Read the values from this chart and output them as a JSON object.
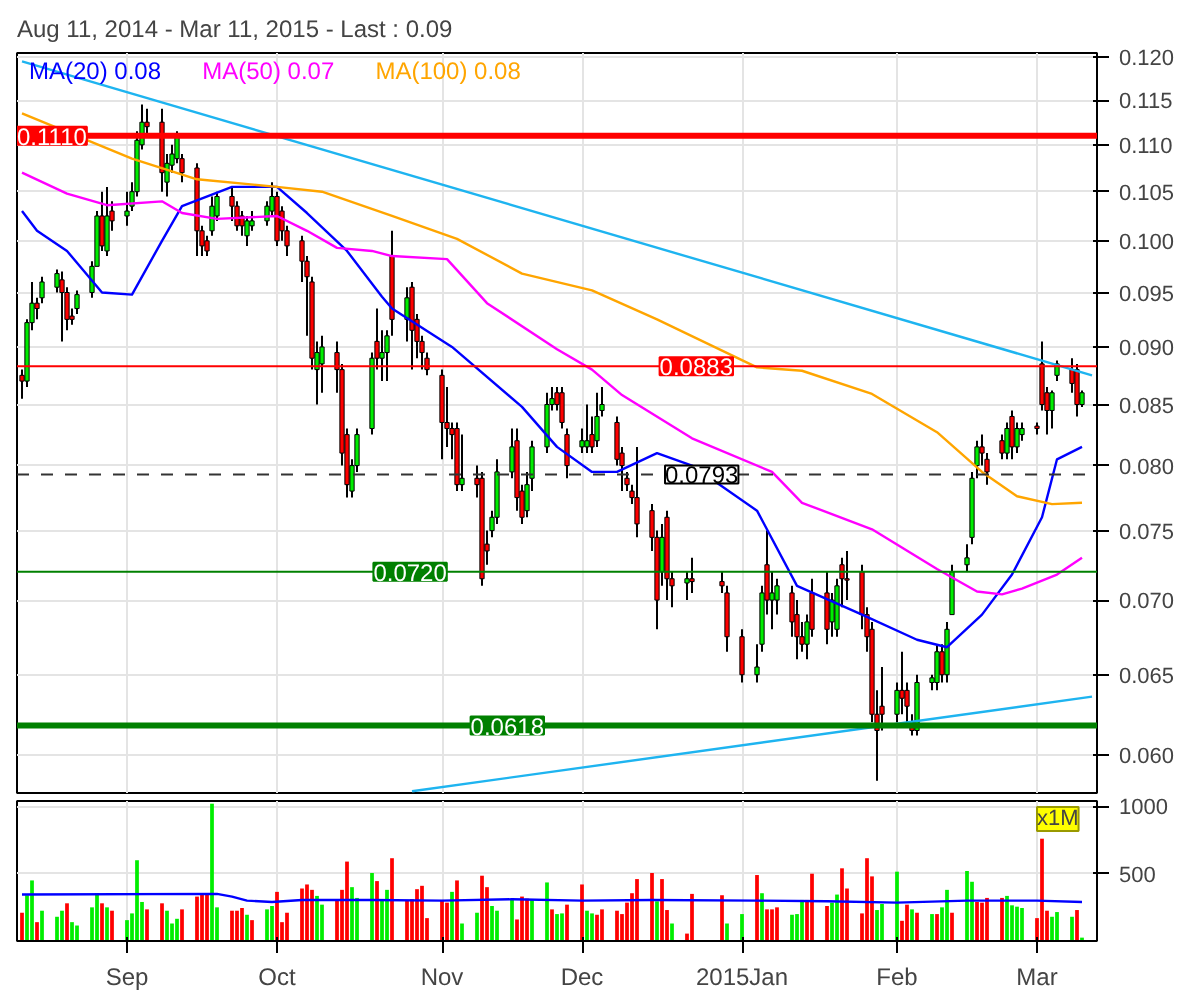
{
  "chart_data": [
    {
      "type": "candlestick",
      "title": "Aug 11, 2014 - Mar 11, 2015 - Last : 0.09",
      "log": true,
      "grid": true,
      "legend": "top left",
      "tick_labels": "y",
      "xlim": [
        "2014-08-10",
        "2015-03-14"
      ],
      "ylim": [
        0.0578,
        0.1205
      ],
      "xticks": [
        {
          "value": "2014-09-01",
          "label": null
        },
        {
          "value": "2014-10-01",
          "label": null
        },
        {
          "value": "2014-11-03",
          "label": null
        },
        {
          "value": "2014-12-01",
          "label": null
        },
        {
          "value": "2015-01-02",
          "label": null
        },
        {
          "value": "2015-02-02",
          "label": null
        },
        {
          "value": "2015-03-02",
          "label": null
        }
      ],
      "yticks": [
        {
          "value": 0.06,
          "label": "0.060"
        },
        {
          "value": 0.065,
          "label": "0.065"
        },
        {
          "value": 0.07,
          "label": "0.070"
        },
        {
          "value": 0.075,
          "label": "0.075"
        },
        {
          "value": 0.08,
          "label": "0.080"
        },
        {
          "value": 0.085,
          "label": "0.085"
        },
        {
          "value": 0.09,
          "label": "0.090"
        },
        {
          "value": 0.095,
          "label": "0.095"
        },
        {
          "value": 0.1,
          "label": "0.100"
        },
        {
          "value": 0.105,
          "label": "0.105"
        },
        {
          "value": 0.11,
          "label": "0.110"
        },
        {
          "value": 0.115,
          "label": "0.115"
        },
        {
          "value": 0.12,
          "label": "0.120"
        }
      ],
      "x": [
        "2014-08-11",
        "2014-08-12",
        "2014-08-13",
        "2014-08-14",
        "2014-08-15",
        "2014-08-18",
        "2014-08-19",
        "2014-08-20",
        "2014-08-21",
        "2014-08-22",
        "2014-08-25",
        "2014-08-26",
        "2014-08-27",
        "2014-08-28",
        "2014-08-29",
        "2014-09-01",
        "2014-09-02",
        "2014-09-03",
        "2014-09-04",
        "2014-09-05",
        "2014-09-08",
        "2014-09-09",
        "2014-09-10",
        "2014-09-11",
        "2014-09-12",
        "2014-09-15",
        "2014-09-16",
        "2014-09-17",
        "2014-09-18",
        "2014-09-19",
        "2014-09-22",
        "2014-09-23",
        "2014-09-24",
        "2014-09-25",
        "2014-09-26",
        "2014-09-29",
        "2014-09-30",
        "2014-10-01",
        "2014-10-02",
        "2014-10-03",
        "2014-10-06",
        "2014-10-07",
        "2014-10-08",
        "2014-10-09",
        "2014-10-10",
        "2014-10-13",
        "2014-10-14",
        "2014-10-15",
        "2014-10-16",
        "2014-10-17",
        "2014-10-20",
        "2014-10-21",
        "2014-10-22",
        "2014-10-23",
        "2014-10-24",
        "2014-10-27",
        "2014-10-28",
        "2014-10-29",
        "2014-10-30",
        "2014-10-31",
        "2014-11-03",
        "2014-11-04",
        "2014-11-05",
        "2014-11-06",
        "2014-11-07",
        "2014-11-10",
        "2014-11-11",
        "2014-11-12",
        "2014-11-13",
        "2014-11-14",
        "2014-11-17",
        "2014-11-18",
        "2014-11-19",
        "2014-11-20",
        "2014-11-21",
        "2014-11-24",
        "2014-11-25",
        "2014-11-26",
        "2014-11-27",
        "2014-11-28",
        "2014-12-01",
        "2014-12-02",
        "2014-12-03",
        "2014-12-04",
        "2014-12-05",
        "2014-12-08",
        "2014-12-09",
        "2014-12-10",
        "2014-12-11",
        "2014-12-12",
        "2014-12-15",
        "2014-12-16",
        "2014-12-17",
        "2014-12-18",
        "2014-12-19",
        "2014-12-22",
        "2014-12-23",
        "2014-12-29",
        "2014-12-30",
        "2015-01-02",
        "2015-01-05",
        "2015-01-06",
        "2015-01-07",
        "2015-01-08",
        "2015-01-09",
        "2015-01-12",
        "2015-01-13",
        "2015-01-14",
        "2015-01-15",
        "2015-01-16",
        "2015-01-19",
        "2015-01-20",
        "2015-01-21",
        "2015-01-22",
        "2015-01-23",
        "2015-01-26",
        "2015-01-27",
        "2015-01-28",
        "2015-01-29",
        "2015-01-30",
        "2015-02-02",
        "2015-02-03",
        "2015-02-04",
        "2015-02-05",
        "2015-02-06",
        "2015-02-09",
        "2015-02-10",
        "2015-02-11",
        "2015-02-12",
        "2015-02-13",
        "2015-02-16",
        "2015-02-17",
        "2015-02-18",
        "2015-02-19",
        "2015-02-20",
        "2015-02-23",
        "2015-02-24",
        "2015-02-25",
        "2015-02-26",
        "2015-02-27",
        "2015-03-02",
        "2015-03-03",
        "2015-03-04",
        "2015-03-05",
        "2015-03-06",
        "2015-03-09",
        "2015-03-10",
        "2015-03-11"
      ],
      "ohlc": [
        [
          0.0875,
          0.088,
          0.0855,
          0.087
        ],
        [
          0.087,
          0.0925,
          0.0865,
          0.0922
        ],
        [
          0.0922,
          0.096,
          0.0915,
          0.094
        ],
        [
          0.094,
          0.0945,
          0.0925,
          0.0935
        ],
        [
          0.0945,
          0.0965,
          0.094,
          0.096
        ],
        [
          0.0955,
          0.0972,
          0.095,
          0.0968
        ],
        [
          0.0962,
          0.097,
          0.0905,
          0.095
        ],
        [
          0.095,
          0.0955,
          0.0915,
          0.0925
        ],
        [
          0.0928,
          0.0935,
          0.092,
          0.0925
        ],
        [
          0.0935,
          0.0952,
          0.093,
          0.0948
        ],
        [
          0.095,
          0.098,
          0.0945,
          0.0975
        ],
        [
          0.0975,
          0.103,
          0.0975,
          0.1025
        ],
        [
          0.1025,
          0.105,
          0.099,
          0.0995
        ],
        [
          0.099,
          0.1055,
          0.0985,
          0.1025
        ],
        [
          0.103,
          0.104,
          0.101,
          0.102
        ],
        [
          0.1025,
          0.105,
          0.1015,
          0.103
        ],
        [
          0.1035,
          0.106,
          0.103,
          0.105
        ],
        [
          0.105,
          0.1115,
          0.1045,
          0.1105
        ],
        [
          0.11,
          0.1145,
          0.1095,
          0.1125
        ],
        [
          0.1125,
          0.114,
          0.111,
          0.112
        ],
        [
          0.1125,
          0.114,
          0.105,
          0.107
        ],
        [
          0.106,
          0.109,
          0.1045,
          0.108
        ],
        [
          0.1078,
          0.11,
          0.107,
          0.109
        ],
        [
          0.1085,
          0.1115,
          0.108,
          0.111
        ],
        [
          0.1085,
          0.109,
          0.106,
          0.107
        ],
        [
          0.1075,
          0.108,
          0.0985,
          0.101
        ],
        [
          0.101,
          0.1015,
          0.0985,
          0.0995
        ],
        [
          0.1,
          0.1005,
          0.0985,
          0.099
        ],
        [
          0.101,
          0.1045,
          0.1005,
          0.1035
        ],
        [
          0.1025,
          0.105,
          0.102,
          0.1045
        ],
        [
          0.1045,
          0.1055,
          0.102,
          0.1035
        ],
        [
          0.1035,
          0.104,
          0.101,
          0.1015
        ],
        [
          0.1025,
          0.103,
          0.1005,
          0.1015
        ],
        [
          0.1005,
          0.1025,
          0.0995,
          0.102
        ],
        [
          0.1015,
          0.103,
          0.101,
          0.102
        ],
        [
          0.102,
          0.104,
          0.1015,
          0.1035
        ],
        [
          0.103,
          0.106,
          0.1025,
          0.1045
        ],
        [
          0.1045,
          0.105,
          0.0995,
          0.1
        ],
        [
          0.103,
          0.1035,
          0.1,
          0.101
        ],
        [
          0.101,
          0.1015,
          0.0985,
          0.0995
        ],
        [
          0.1,
          0.1005,
          0.096,
          0.098
        ],
        [
          0.098,
          0.0985,
          0.091,
          0.0965
        ],
        [
          0.096,
          0.0965,
          0.088,
          0.089
        ],
        [
          0.088,
          0.0905,
          0.085,
          0.0895
        ],
        [
          0.0885,
          0.091,
          0.086,
          0.09
        ],
        [
          0.0895,
          0.0905,
          0.086,
          0.088
        ],
        [
          0.088,
          0.0885,
          0.08,
          0.081
        ],
        [
          0.0825,
          0.083,
          0.0775,
          0.0785
        ],
        [
          0.078,
          0.0805,
          0.0775,
          0.08
        ],
        [
          0.08,
          0.083,
          0.0795,
          0.0825
        ],
        [
          0.083,
          0.0895,
          0.0825,
          0.089
        ],
        [
          0.0905,
          0.0935,
          0.088,
          0.089
        ],
        [
          0.089,
          0.0915,
          0.087,
          0.0895
        ],
        [
          0.0895,
          0.0915,
          0.087,
          0.091
        ],
        [
          0.0985,
          0.101,
          0.091,
          0.0925
        ],
        [
          0.0925,
          0.0955,
          0.0905,
          0.0945
        ],
        [
          0.0955,
          0.096,
          0.088,
          0.0915
        ],
        [
          0.0925,
          0.093,
          0.089,
          0.0905
        ],
        [
          0.0905,
          0.091,
          0.088,
          0.0895
        ],
        [
          0.089,
          0.0895,
          0.0875,
          0.088
        ],
        [
          0.0875,
          0.088,
          0.0805,
          0.0835
        ],
        [
          0.0835,
          0.0865,
          0.0815,
          0.083
        ],
        [
          0.083,
          0.0835,
          0.0805,
          0.0825
        ],
        [
          0.083,
          0.0835,
          0.078,
          0.0785
        ],
        [
          0.0785,
          0.0825,
          0.078,
          0.079
        ],
        [
          0.079,
          0.08,
          0.0775,
          0.0785
        ],
        [
          0.079,
          0.0795,
          0.071,
          0.0715
        ],
        [
          0.074,
          0.075,
          0.0725,
          0.0735
        ],
        [
          0.075,
          0.0765,
          0.0745,
          0.076
        ],
        [
          0.076,
          0.0805,
          0.0755,
          0.0795
        ],
        [
          0.0795,
          0.083,
          0.079,
          0.0815
        ],
        [
          0.082,
          0.083,
          0.0765,
          0.0775
        ],
        [
          0.078,
          0.0785,
          0.0755,
          0.076
        ],
        [
          0.0765,
          0.0795,
          0.076,
          0.0785
        ],
        [
          0.079,
          0.082,
          0.078,
          0.0815
        ],
        [
          0.0815,
          0.086,
          0.081,
          0.085
        ],
        [
          0.085,
          0.0865,
          0.0845,
          0.0855
        ],
        [
          0.086,
          0.0865,
          0.0845,
          0.085
        ],
        [
          0.086,
          0.0865,
          0.083,
          0.0835
        ],
        [
          0.0825,
          0.083,
          0.079,
          0.08
        ],
        [
          0.0815,
          0.083,
          0.081,
          0.082
        ],
        [
          0.0815,
          0.085,
          0.081,
          0.082
        ],
        [
          0.0825,
          0.084,
          0.081,
          0.0815
        ],
        [
          0.082,
          0.086,
          0.0815,
          0.084
        ],
        [
          0.0845,
          0.0865,
          0.084,
          0.085
        ],
        [
          0.0835,
          0.084,
          0.08,
          0.0805
        ],
        [
          0.081,
          0.0815,
          0.078,
          0.08
        ],
        [
          0.079,
          0.0795,
          0.078,
          0.0785
        ],
        [
          0.078,
          0.0785,
          0.077,
          0.0775
        ],
        [
          0.0775,
          0.0815,
          0.0745,
          0.0755
        ],
        [
          0.0765,
          0.077,
          0.0735,
          0.0745
        ],
        [
          0.0745,
          0.075,
          0.068,
          0.07
        ],
        [
          0.072,
          0.0755,
          0.071,
          0.0745
        ],
        [
          0.076,
          0.0765,
          0.07,
          0.0715
        ],
        [
          0.0715,
          0.072,
          0.0695,
          0.071
        ],
        [
          0.0712,
          0.072,
          0.07,
          0.0715
        ],
        [
          0.0715,
          0.073,
          0.0705,
          0.0713
        ],
        [
          0.0713,
          0.072,
          0.0705,
          0.071
        ],
        [
          0.0705,
          0.071,
          0.0665,
          0.0675
        ],
        [
          0.0675,
          0.068,
          0.0645,
          0.065
        ],
        [
          0.065,
          0.067,
          0.0645,
          0.0655
        ],
        [
          0.067,
          0.071,
          0.0665,
          0.0705
        ],
        [
          0.0725,
          0.075,
          0.069,
          0.07
        ],
        [
          0.07,
          0.072,
          0.068,
          0.0705
        ],
        [
          0.07,
          0.0715,
          0.069,
          0.071
        ],
        [
          0.0705,
          0.071,
          0.0675,
          0.0685
        ],
        [
          0.069,
          0.07,
          0.066,
          0.0675
        ],
        [
          0.0675,
          0.0685,
          0.0665,
          0.067
        ],
        [
          0.067,
          0.069,
          0.066,
          0.0685
        ],
        [
          0.0705,
          0.0715,
          0.0675,
          0.068
        ],
        [
          0.0705,
          0.072,
          0.067,
          0.068
        ],
        [
          0.0685,
          0.0705,
          0.0675,
          0.07
        ],
        [
          0.068,
          0.0715,
          0.0675,
          0.071
        ],
        [
          0.0725,
          0.073,
          0.0695,
          0.0715
        ],
        [
          0.0715,
          0.0735,
          0.07,
          0.0714
        ],
        [
          0.072,
          0.0725,
          0.068,
          0.069
        ],
        [
          0.069,
          0.0695,
          0.0665,
          0.0675
        ],
        [
          0.068,
          0.0685,
          0.062,
          0.0625
        ],
        [
          0.0625,
          0.064,
          0.0585,
          0.0615
        ],
        [
          0.063,
          0.0655,
          0.0615,
          0.0625
        ],
        [
          0.0625,
          0.0645,
          0.062,
          0.064
        ],
        [
          0.064,
          0.0665,
          0.0625,
          0.0635
        ],
        [
          0.064,
          0.0645,
          0.062,
          0.063
        ],
        [
          0.062,
          0.0625,
          0.0612,
          0.0615
        ],
        [
          0.0615,
          0.065,
          0.0612,
          0.0645
        ],
        [
          0.0645,
          0.065,
          0.064,
          0.0648
        ],
        [
          0.0645,
          0.067,
          0.064,
          0.0665
        ],
        [
          0.0665,
          0.067,
          0.0645,
          0.065
        ],
        [
          0.065,
          0.0685,
          0.0645,
          0.068
        ],
        [
          0.069,
          0.0725,
          0.069,
          0.072
        ],
        [
          0.0725,
          0.074,
          0.072,
          0.073
        ],
        [
          0.0745,
          0.0795,
          0.074,
          0.079
        ],
        [
          0.08,
          0.082,
          0.079,
          0.0815
        ],
        [
          0.0815,
          0.0825,
          0.08,
          0.081
        ],
        [
          0.0805,
          0.081,
          0.0785,
          0.0795
        ],
        [
          0.082,
          0.0825,
          0.0805,
          0.081
        ],
        [
          0.081,
          0.0835,
          0.0805,
          0.083
        ],
        [
          0.084,
          0.0845,
          0.0805,
          0.0815
        ],
        [
          0.0815,
          0.0835,
          0.081,
          0.083
        ],
        [
          0.0825,
          0.0835,
          0.082,
          0.083
        ],
        [
          0.0832,
          0.0835,
          0.0825,
          0.083
        ],
        [
          0.0885,
          0.0905,
          0.0845,
          0.085
        ],
        [
          0.086,
          0.0865,
          0.0825,
          0.0845
        ],
        [
          0.0845,
          0.0862,
          0.083,
          0.086
        ],
        [
          0.0875,
          0.0888,
          0.087,
          0.0885
        ],
        [
          0.088,
          0.089,
          0.086,
          0.0868
        ],
        [
          0.088,
          0.0885,
          0.084,
          0.085
        ],
        [
          0.085,
          0.0862,
          0.0848,
          0.086
        ]
      ],
      "series": [
        {
          "type": "line",
          "name": "MA(20) 0.08",
          "color": "#0000ff",
          "x": [
            "2014-08-11",
            "2014-08-14",
            "2014-08-20",
            "2014-08-27",
            "2014-09-02",
            "2014-09-08",
            "2014-09-12",
            "2014-09-22",
            "2014-10-01",
            "2014-10-07",
            "2014-10-15",
            "2014-10-22",
            "2014-10-24",
            "2014-11-05",
            "2014-11-19",
            "2014-11-26",
            "2014-12-03",
            "2014-12-08",
            "2014-12-16",
            "2014-12-23",
            "2015-01-05",
            "2015-01-13",
            "2015-01-26",
            "2015-02-06",
            "2015-02-12",
            "2015-02-19",
            "2015-02-25",
            "2015-03-03",
            "2015-03-06",
            "2015-03-11"
          ],
          "values": [
            0.103,
            0.101,
            0.099,
            0.095,
            0.0948,
            0.1,
            0.1035,
            0.1055,
            0.1055,
            0.1028,
            0.099,
            0.0946,
            0.0935,
            0.09,
            0.0848,
            0.0815,
            0.0795,
            0.0795,
            0.081,
            0.08,
            0.0765,
            0.071,
            0.069,
            0.0673,
            0.0668,
            0.069,
            0.0718,
            0.076,
            0.0805,
            0.0815
          ]
        },
        {
          "type": "line",
          "name": "MA(50) 0.07",
          "color": "#ff00ff",
          "x": [
            "2014-08-11",
            "2014-08-20",
            "2014-08-28",
            "2014-09-08",
            "2014-09-12",
            "2014-09-19",
            "2014-10-01",
            "2014-10-07",
            "2014-10-13",
            "2014-10-20",
            "2014-10-24",
            "2014-11-04",
            "2014-11-12",
            "2014-11-26",
            "2014-12-03",
            "2014-12-09",
            "2014-12-23",
            "2015-01-08",
            "2015-01-14",
            "2015-01-28",
            "2015-02-10",
            "2015-02-18",
            "2015-02-23",
            "2015-02-27",
            "2015-03-06",
            "2015-03-11"
          ],
          "values": [
            0.107,
            0.1048,
            0.1036,
            0.104,
            0.1028,
            0.1022,
            0.1025,
            0.101,
            0.0993,
            0.099,
            0.0985,
            0.0982,
            0.094,
            0.0898,
            0.088,
            0.0858,
            0.0822,
            0.0795,
            0.0771,
            0.0751,
            0.0722,
            0.0706,
            0.0704,
            0.0708,
            0.0718,
            0.073
          ]
        },
        {
          "type": "line",
          "name": "MA(100) 0.08",
          "color": "#ffa500",
          "x": [
            "2014-08-11",
            "2014-09-02",
            "2014-09-15",
            "2014-10-01",
            "2014-10-10",
            "2014-10-24",
            "2014-11-06",
            "2014-11-19",
            "2014-12-03",
            "2014-12-16",
            "2015-01-05",
            "2015-01-14",
            "2015-01-28",
            "2015-02-10",
            "2015-02-19",
            "2015-02-26",
            "2015-03-05",
            "2015-03-11"
          ],
          "values": [
            0.1135,
            0.1085,
            0.1063,
            0.1055,
            0.105,
            0.1025,
            0.1002,
            0.0968,
            0.0952,
            0.0925,
            0.0882,
            0.0879,
            0.0859,
            0.0827,
            0.0795,
            0.0776,
            0.077,
            0.0771
          ]
        },
        {
          "type": "line",
          "color": "#1eb4f0",
          "x": [
            "2014-08-11",
            "2015-03-13"
          ],
          "values": [
            0.1195,
            0.0875
          ]
        },
        {
          "type": "line",
          "color": "#1eb4f0",
          "x": [
            "2014-10-28",
            "2015-03-13"
          ],
          "values": [
            0.0579,
            0.0636
          ]
        }
      ],
      "ref_lines": [
        {
          "axis": "y",
          "value": 0.111,
          "label": "0.1110",
          "color": "#ff0000"
        },
        {
          "axis": "y",
          "value": 0.0883,
          "label": "0.0883",
          "color": "#ff0000"
        },
        {
          "axis": "y",
          "value": 0.0793,
          "label": "0.0793",
          "color": "#333333",
          "line_style": "dashed"
        },
        {
          "axis": "y",
          "value": 0.072,
          "label": "0.0720",
          "color": "#008000"
        },
        {
          "axis": "y",
          "value": 0.0618,
          "label": "0.0618",
          "color": "#008000"
        }
      ]
    },
    {
      "type": "bar",
      "grid": true,
      "xlim": [
        "2014-08-10",
        "2015-03-14"
      ],
      "ylim": [
        0,
        1040
      ],
      "yticks": [
        500,
        1000
      ],
      "xticks": [
        {
          "value": "2014-09-01",
          "label": "Sep"
        },
        {
          "value": "2014-10-01",
          "label": "Oct"
        },
        {
          "value": "2014-11-03",
          "label": "Nov"
        },
        {
          "value": "2014-12-01",
          "label": "Dec"
        },
        {
          "value": "2015-01-02",
          "label": "2015Jan"
        },
        {
          "value": "2015-02-02",
          "label": "Feb"
        },
        {
          "value": "2015-03-02",
          "label": "Mar"
        }
      ],
      "annotations": [
        "x1M"
      ],
      "x": [
        "2014-08-11",
        "2014-08-12",
        "2014-08-13",
        "2014-08-14",
        "2014-08-15",
        "2014-08-18",
        "2014-08-19",
        "2014-08-20",
        "2014-08-21",
        "2014-08-22",
        "2014-08-25",
        "2014-08-26",
        "2014-08-27",
        "2014-08-28",
        "2014-08-29",
        "2014-09-01",
        "2014-09-02",
        "2014-09-03",
        "2014-09-04",
        "2014-09-05",
        "2014-09-08",
        "2014-09-09",
        "2014-09-10",
        "2014-09-11",
        "2014-09-12",
        "2014-09-15",
        "2014-09-16",
        "2014-09-17",
        "2014-09-18",
        "2014-09-19",
        "2014-09-22",
        "2014-09-23",
        "2014-09-24",
        "2014-09-25",
        "2014-09-26",
        "2014-09-29",
        "2014-09-30",
        "2014-10-01",
        "2014-10-02",
        "2014-10-03",
        "2014-10-06",
        "2014-10-07",
        "2014-10-08",
        "2014-10-09",
        "2014-10-10",
        "2014-10-13",
        "2014-10-14",
        "2014-10-15",
        "2014-10-16",
        "2014-10-17",
        "2014-10-20",
        "2014-10-21",
        "2014-10-22",
        "2014-10-23",
        "2014-10-24",
        "2014-10-27",
        "2014-10-28",
        "2014-10-29",
        "2014-10-30",
        "2014-10-31",
        "2014-11-03",
        "2014-11-04",
        "2014-11-05",
        "2014-11-06",
        "2014-11-07",
        "2014-11-10",
        "2014-11-11",
        "2014-11-12",
        "2014-11-13",
        "2014-11-14",
        "2014-11-17",
        "2014-11-18",
        "2014-11-19",
        "2014-11-20",
        "2014-11-21",
        "2014-11-24",
        "2014-11-25",
        "2014-11-26",
        "2014-11-27",
        "2014-11-28",
        "2014-12-01",
        "2014-12-02",
        "2014-12-03",
        "2014-12-04",
        "2014-12-05",
        "2014-12-08",
        "2014-12-09",
        "2014-12-10",
        "2014-12-11",
        "2014-12-12",
        "2014-12-15",
        "2014-12-16",
        "2014-12-17",
        "2014-12-18",
        "2014-12-19",
        "2014-12-22",
        "2014-12-23",
        "2014-12-29",
        "2014-12-30",
        "2015-01-02",
        "2015-01-05",
        "2015-01-06",
        "2015-01-07",
        "2015-01-08",
        "2015-01-09",
        "2015-01-12",
        "2015-01-13",
        "2015-01-14",
        "2015-01-15",
        "2015-01-16",
        "2015-01-19",
        "2015-01-20",
        "2015-01-21",
        "2015-01-22",
        "2015-01-23",
        "2015-01-26",
        "2015-01-27",
        "2015-01-28",
        "2015-01-29",
        "2015-01-30",
        "2015-02-02",
        "2015-02-03",
        "2015-02-04",
        "2015-02-05",
        "2015-02-06",
        "2015-02-09",
        "2015-02-10",
        "2015-02-11",
        "2015-02-12",
        "2015-02-13",
        "2015-02-16",
        "2015-02-17",
        "2015-02-18",
        "2015-02-19",
        "2015-02-20",
        "2015-02-23",
        "2015-02-24",
        "2015-02-25",
        "2015-02-26",
        "2015-02-27",
        "2015-03-02",
        "2015-03-03",
        "2015-03-04",
        "2015-03-05",
        "2015-03-06",
        "2015-03-09",
        "2015-03-10",
        "2015-03-11"
      ],
      "values": [
        210,
        340,
        450,
        140,
        225,
        180,
        225,
        280,
        140,
        115,
        250,
        355,
        280,
        250,
        225,
        155,
        205,
        600,
        290,
        235,
        280,
        225,
        130,
        165,
        235,
        330,
        345,
        345,
        1020,
        250,
        225,
        225,
        245,
        195,
        155,
        235,
        260,
        365,
        140,
        210,
        390,
        420,
        380,
        335,
        270,
        305,
        380,
        590,
        400,
        320,
        505,
        445,
        310,
        380,
        615,
        305,
        310,
        385,
        410,
        170,
        305,
        285,
        365,
        450,
        130,
        210,
        485,
        400,
        260,
        225,
        310,
        160,
        330,
        315,
        310,
        435,
        235,
        200,
        205,
        270,
        420,
        225,
        205,
        195,
        235,
        225,
        200,
        285,
        355,
        460,
        505,
        295,
        460,
        230,
        130,
        55,
        350,
        340,
        130,
        200,
        490,
        355,
        235,
        235,
        250,
        195,
        200,
        305,
        305,
        500,
        260,
        285,
        345,
        540,
        390,
        205,
        615,
        480,
        230,
        275,
        515,
        150,
        270,
        235,
        210,
        200,
        200,
        250,
        380,
        210,
        520,
        440,
        290,
        285,
        320,
        320,
        335,
        265,
        255,
        245,
        170,
        760,
        225,
        180,
        215,
        180,
        230,
        25
      ],
      "colors": [
        "#ff0000",
        "#00ee00",
        "#00ee00",
        "#ff0000",
        "#00ee00",
        "#00ee00",
        "#00ee00",
        "#ff0000",
        "#00ee00",
        "#00ee00",
        "#00ee00",
        "#00ee00",
        "#ff0000",
        "#00ee00",
        "#ff0000",
        "#00ee00",
        "#00ee00",
        "#00ee00",
        "#00ee00",
        "#ff0000",
        "#ff0000",
        "#00ee00",
        "#00ee00",
        "#00ee00",
        "#ff0000",
        "#ff0000",
        "#ff0000",
        "#ff0000",
        "#00ee00",
        "#00ee00",
        "#ff0000",
        "#ff0000",
        "#ff0000",
        "#00ee00",
        "#ff0000",
        "#00ee00",
        "#00ee00",
        "#ff0000",
        "#ff0000",
        "#ff0000",
        "#ff0000",
        "#ff0000",
        "#ff0000",
        "#00ee00",
        "#00ee00",
        "#ff0000",
        "#ff0000",
        "#ff0000",
        "#00ee00",
        "#00ee00",
        "#00ee00",
        "#ff0000",
        "#00ee00",
        "#00ee00",
        "#ff0000",
        "#ff0000",
        "#ff0000",
        "#ff0000",
        "#ff0000",
        "#ff0000",
        "#ff0000",
        "#ff0000",
        "#00ee00",
        "#ff0000",
        "#00ee00",
        "#00ee00",
        "#ff0000",
        "#ff0000",
        "#00ee00",
        "#00ee00",
        "#00ee00",
        "#ff0000",
        "#ff0000",
        "#ff0000",
        "#00ee00",
        "#00ee00",
        "#ff0000",
        "#00ee00",
        "#00ee00",
        "#ff0000",
        "#ff0000",
        "#00ee00",
        "#00ee00",
        "#ff0000",
        "#ff0000",
        "#ff0000",
        "#ff0000",
        "#ff0000",
        "#ff0000",
        "#ff0000",
        "#ff0000",
        "#00ee00",
        "#ff0000",
        "#ff0000",
        "#00ee00",
        "#ff0000",
        "#ff0000",
        "#ff0000",
        "#00ee00",
        "#00ee00",
        "#ff0000",
        "#00ee00",
        "#ff0000",
        "#ff0000",
        "#ff0000",
        "#00ee00",
        "#00ee00",
        "#00ee00",
        "#ff0000",
        "#ff0000",
        "#ff0000",
        "#00ee00",
        "#00ee00",
        "#ff0000",
        "#ff0000",
        "#ff0000",
        "#ff0000",
        "#ff0000",
        "#00ee00",
        "#00ee00",
        "#00ee00",
        "#ff0000",
        "#ff0000",
        "#00ee00",
        "#ff0000",
        "#00ee00",
        "#ff0000",
        "#00ee00",
        "#00ee00",
        "#ff0000",
        "#00ee00",
        "#00ee00",
        "#ff0000",
        "#ff0000",
        "#ff0000",
        "#ff0000",
        "#00ee00",
        "#00ee00",
        "#00ee00",
        "#00ee00",
        "#ff0000",
        "#ff0000",
        "#ff0000",
        "#00ee00",
        "#00ee00",
        "#00ee00",
        "#ff0000",
        "#00ee00"
      ],
      "series": [
        {
          "type": "line",
          "color": "#0000ff",
          "x": [
            "2014-08-11",
            "2014-09-19",
            "2014-09-22",
            "2014-09-25",
            "2014-09-30",
            "2014-10-06",
            "2014-10-20",
            "2014-11-03",
            "2014-11-17",
            "2014-12-01",
            "2014-12-15",
            "2015-01-05",
            "2015-01-19",
            "2015-02-02",
            "2015-02-16",
            "2015-03-02",
            "2015-03-11"
          ],
          "values": [
            345,
            350,
            330,
            300,
            290,
            305,
            305,
            300,
            310,
            300,
            305,
            300,
            295,
            285,
            300,
            300,
            290
          ]
        }
      ]
    }
  ]
}
